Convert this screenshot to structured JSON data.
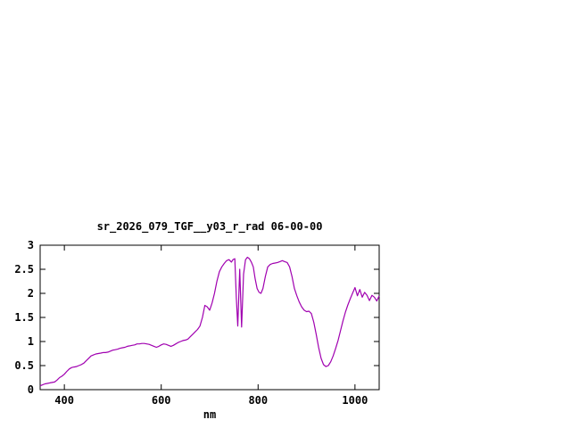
{
  "chart_data": {
    "type": "line",
    "title": "sr_2026_079_TGF__y03_r_rad 06-00-00",
    "xlabel": "nm",
    "ylabel": "",
    "xlim": [
      350,
      1050
    ],
    "ylim": [
      0,
      3
    ],
    "xticks": [
      400,
      600,
      800,
      1000
    ],
    "yticks": [
      0,
      0.5,
      1,
      1.5,
      2,
      2.5,
      3
    ],
    "grid": false,
    "legend": "none",
    "line_color": "#a000b0",
    "border_color": "#000000",
    "background_color": "#ffffff",
    "x": [
      350,
      355,
      360,
      365,
      370,
      375,
      380,
      385,
      390,
      395,
      400,
      405,
      410,
      415,
      420,
      425,
      430,
      435,
      440,
      445,
      450,
      455,
      460,
      465,
      470,
      475,
      480,
      485,
      490,
      495,
      500,
      505,
      510,
      515,
      520,
      525,
      530,
      535,
      540,
      545,
      550,
      555,
      560,
      565,
      570,
      575,
      580,
      585,
      590,
      595,
      600,
      605,
      610,
      615,
      620,
      625,
      630,
      635,
      640,
      645,
      650,
      655,
      660,
      665,
      670,
      675,
      680,
      685,
      690,
      695,
      700,
      705,
      710,
      715,
      720,
      725,
      730,
      735,
      740,
      745,
      748,
      752,
      755,
      758,
      762,
      766,
      770,
      774,
      778,
      782,
      786,
      790,
      794,
      798,
      802,
      806,
      810,
      815,
      820,
      825,
      830,
      835,
      840,
      845,
      850,
      855,
      860,
      865,
      870,
      875,
      880,
      885,
      890,
      895,
      900,
      905,
      910,
      915,
      920,
      925,
      930,
      935,
      940,
      945,
      950,
      955,
      960,
      965,
      970,
      975,
      980,
      985,
      990,
      995,
      1000,
      1005,
      1010,
      1015,
      1020,
      1025,
      1030,
      1035,
      1040,
      1045,
      1050
    ],
    "y": [
      0.08,
      0.1,
      0.12,
      0.13,
      0.14,
      0.15,
      0.16,
      0.2,
      0.25,
      0.28,
      0.32,
      0.38,
      0.43,
      0.46,
      0.47,
      0.48,
      0.5,
      0.52,
      0.55,
      0.6,
      0.65,
      0.7,
      0.72,
      0.74,
      0.75,
      0.76,
      0.77,
      0.77,
      0.78,
      0.8,
      0.82,
      0.83,
      0.84,
      0.86,
      0.87,
      0.88,
      0.9,
      0.91,
      0.92,
      0.93,
      0.95,
      0.95,
      0.96,
      0.96,
      0.95,
      0.94,
      0.92,
      0.9,
      0.88,
      0.9,
      0.93,
      0.95,
      0.94,
      0.92,
      0.9,
      0.92,
      0.95,
      0.98,
      1.0,
      1.02,
      1.03,
      1.05,
      1.1,
      1.15,
      1.2,
      1.25,
      1.32,
      1.5,
      1.75,
      1.72,
      1.65,
      1.8,
      2.0,
      2.25,
      2.45,
      2.55,
      2.62,
      2.68,
      2.7,
      2.65,
      2.7,
      2.72,
      1.9,
      1.32,
      2.5,
      1.3,
      2.4,
      2.7,
      2.75,
      2.72,
      2.65,
      2.55,
      2.3,
      2.1,
      2.02,
      2.0,
      2.1,
      2.35,
      2.55,
      2.6,
      2.62,
      2.63,
      2.64,
      2.66,
      2.68,
      2.66,
      2.64,
      2.55,
      2.35,
      2.1,
      1.95,
      1.82,
      1.72,
      1.65,
      1.62,
      1.63,
      1.58,
      1.4,
      1.15,
      0.88,
      0.65,
      0.52,
      0.48,
      0.5,
      0.58,
      0.7,
      0.85,
      1.02,
      1.22,
      1.42,
      1.6,
      1.75,
      1.88,
      2.0,
      2.12,
      1.95,
      2.08,
      1.92,
      2.02,
      1.96,
      1.85,
      1.96,
      1.92,
      1.84,
      1.95
    ]
  }
}
